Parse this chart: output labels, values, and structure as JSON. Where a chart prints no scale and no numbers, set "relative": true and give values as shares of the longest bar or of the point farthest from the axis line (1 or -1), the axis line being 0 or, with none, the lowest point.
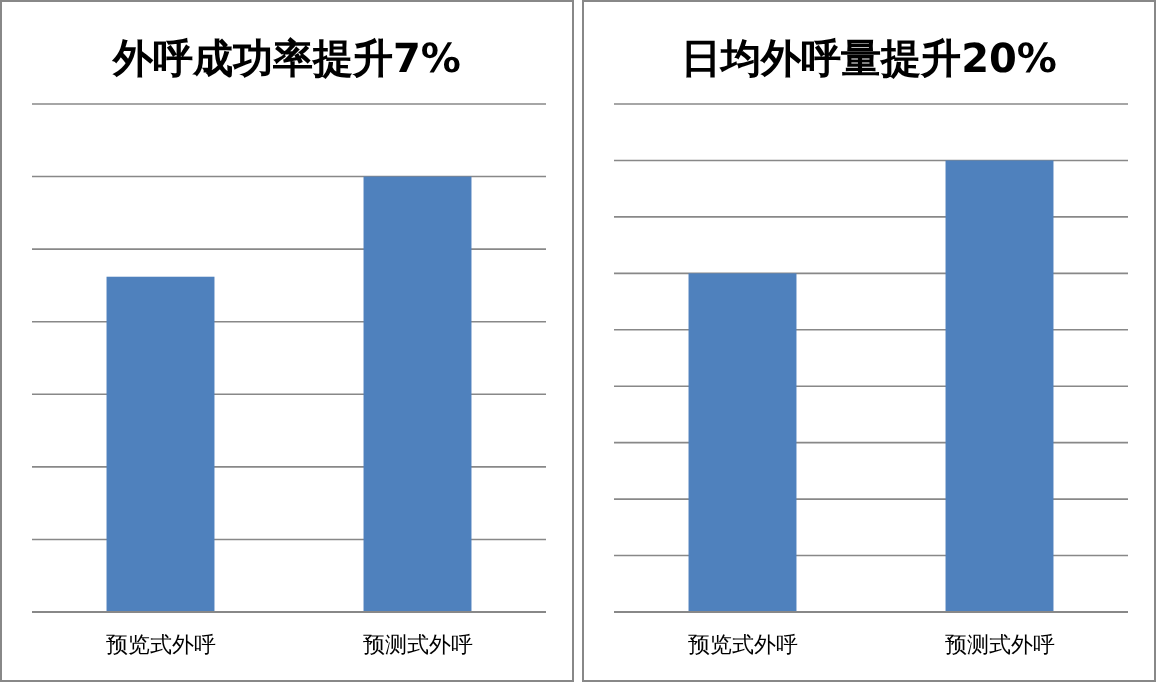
{
  "chart_data": [
    {
      "type": "bar",
      "title": "外呼成功率提升7%",
      "categories": [
        "预览式外呼",
        "预测式外呼"
      ],
      "values": [
        0.77,
        1
      ],
      "color": "#4f81bd",
      "relative": true,
      "grid": true
    },
    {
      "type": "bar",
      "title": "日均外呼量提升20%",
      "categories": [
        "预览式外呼",
        "预测式外呼"
      ],
      "values": [
        0.75,
        1
      ],
      "color": "#4f81bd",
      "relative": true,
      "grid": true
    }
  ]
}
